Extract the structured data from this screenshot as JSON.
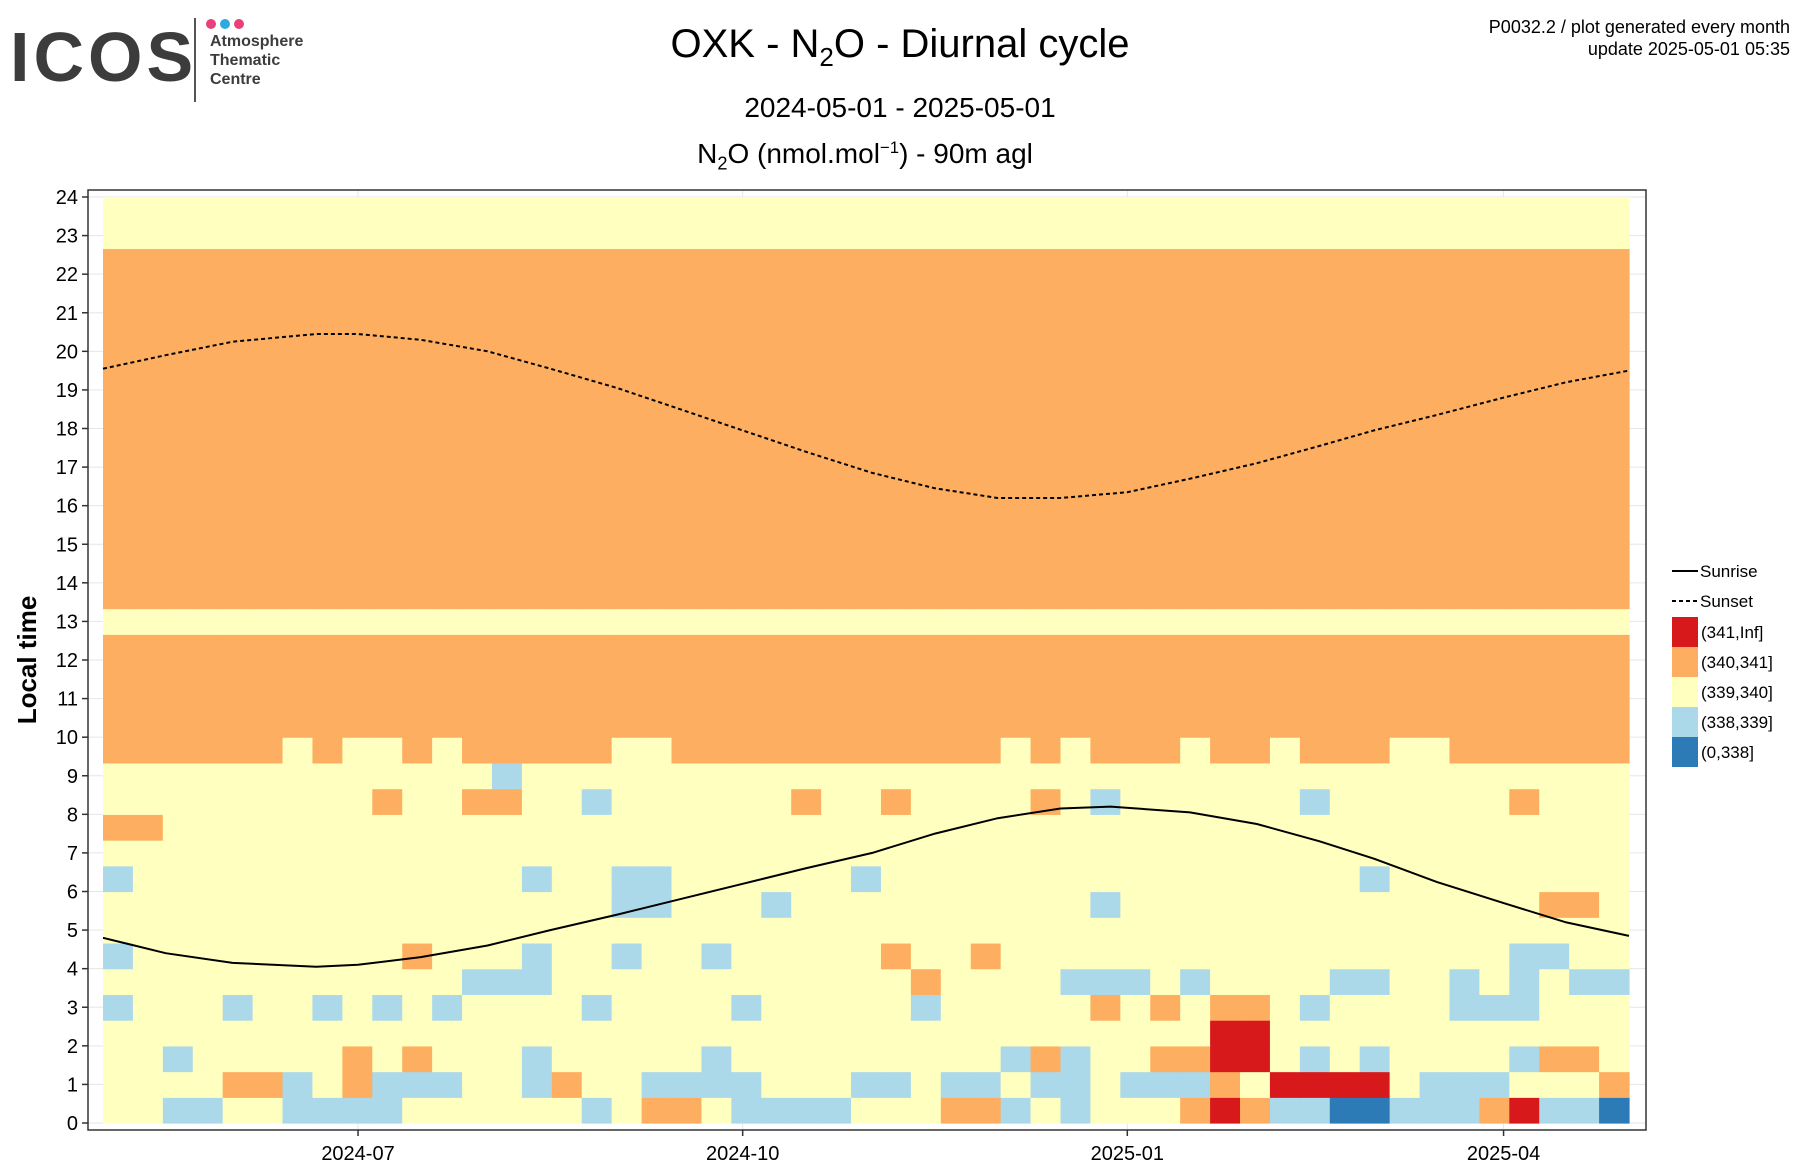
{
  "logo": {
    "word": "ICOS",
    "line1": "Atmosphere",
    "line2": "Thematic",
    "line3": "Centre",
    "dot_colors": [
      "#e8407a",
      "#2eaae1",
      "#e8407a"
    ]
  },
  "header": {
    "code_line": "P0032.2 / plot generated every month",
    "update_line": "update  2025-05-01 05:35",
    "title_pre": "OXK - N",
    "title_sub": "2",
    "title_post": "O - Diurnal cycle",
    "period": "2024-05-01 - 2025-05-01",
    "unit_pre": "N",
    "unit_sub": "2",
    "unit_mid": "O (nmol.mol",
    "unit_sup": "−1",
    "unit_post": ") - 90m agl"
  },
  "chart_data": {
    "type": "heatmap",
    "ylabel": "Local time",
    "x_start": "2024-05-01",
    "x_end": "2025-05-01",
    "x_ticks": [
      "2024-07-01",
      "2024-10-01",
      "2025-01-01",
      "2025-04-01"
    ],
    "x_tick_labels": [
      "2024-07",
      "2024-10",
      "2025-01",
      "2025-04"
    ],
    "y_range": [
      0,
      24
    ],
    "y_ticks": [
      0,
      1,
      2,
      3,
      4,
      5,
      6,
      7,
      8,
      9,
      10,
      11,
      12,
      13,
      14,
      15,
      16,
      17,
      18,
      19,
      20,
      21,
      22,
      23,
      24
    ],
    "bins": [
      {
        "label": "(341,Inf]",
        "color": "#d7191c"
      },
      {
        "label": "(340,341]",
        "color": "#fdae61"
      },
      {
        "label": "(339,340]",
        "color": "#ffffbf"
      },
      {
        "label": "(338,339]",
        "color": "#abd9e9"
      },
      {
        "label": "(0,338]",
        "color": "#2c7bb6"
      }
    ],
    "series": [
      {
        "name": "Sunrise",
        "style": "solid",
        "points": [
          [
            "2024-05-01",
            4.8
          ],
          [
            "2024-05-16",
            4.4
          ],
          [
            "2024-06-01",
            4.15
          ],
          [
            "2024-06-21",
            4.05
          ],
          [
            "2024-07-01",
            4.1
          ],
          [
            "2024-07-16",
            4.3
          ],
          [
            "2024-08-01",
            4.6
          ],
          [
            "2024-08-16",
            5.0
          ],
          [
            "2024-09-01",
            5.4
          ],
          [
            "2024-09-16",
            5.8
          ],
          [
            "2024-10-01",
            6.2
          ],
          [
            "2024-10-16",
            6.6
          ],
          [
            "2024-11-01",
            7.0
          ],
          [
            "2024-11-16",
            7.5
          ],
          [
            "2024-12-01",
            7.9
          ],
          [
            "2024-12-16",
            8.15
          ],
          [
            "2024-12-28",
            8.2
          ],
          [
            "2025-01-16",
            8.05
          ],
          [
            "2025-02-01",
            7.75
          ],
          [
            "2025-02-16",
            7.3
          ],
          [
            "2025-03-01",
            6.85
          ],
          [
            "2025-03-16",
            6.25
          ],
          [
            "2025-04-01",
            5.7
          ],
          [
            "2025-04-16",
            5.2
          ],
          [
            "2025-05-01",
            4.85
          ]
        ]
      },
      {
        "name": "Sunset",
        "style": "dashed",
        "points": [
          [
            "2024-05-01",
            19.55
          ],
          [
            "2024-05-16",
            19.9
          ],
          [
            "2024-06-01",
            20.25
          ],
          [
            "2024-06-21",
            20.45
          ],
          [
            "2024-07-01",
            20.45
          ],
          [
            "2024-07-16",
            20.3
          ],
          [
            "2024-08-01",
            20.0
          ],
          [
            "2024-08-16",
            19.55
          ],
          [
            "2024-09-01",
            19.05
          ],
          [
            "2024-09-16",
            18.5
          ],
          [
            "2024-10-01",
            17.95
          ],
          [
            "2024-10-16",
            17.4
          ],
          [
            "2024-11-01",
            16.85
          ],
          [
            "2024-11-16",
            16.45
          ],
          [
            "2024-12-01",
            16.2
          ],
          [
            "2024-12-16",
            16.2
          ],
          [
            "2025-01-01",
            16.35
          ],
          [
            "2025-01-16",
            16.7
          ],
          [
            "2025-02-01",
            17.1
          ],
          [
            "2025-02-16",
            17.55
          ],
          [
            "2025-03-01",
            17.95
          ],
          [
            "2025-03-16",
            18.35
          ],
          [
            "2025-04-01",
            18.8
          ],
          [
            "2025-04-16",
            19.2
          ],
          [
            "2025-05-01",
            19.5
          ]
        ]
      }
    ],
    "grid": true,
    "legend_position": "right",
    "daily_bins": [
      "223322333322222232112333322211323222101334433310334",
      "222211321333223122333322233233233233312000023332221",
      "223222221212223222223222222222313221100232322223112",
      "222222222222222222222222222222222222200222222222222",
      "322232232323222232222322222322222121211232222333222",
      "222222222222333222222222222122223332322223322323233",
      "322222222212223223223222221221222222222222222223322",
      "222222222222222222222222222222222222222222222222222",
      "222222222222222223322232222222222322222222222222112",
      "322222222222223223322222232222222222222222322222222",
      "222222222222222222222222222222222222222222222222222",
      "112222222222222222222222222222222222222222222222222",
      "222222222122112232222221221222212322222232222221222",
      "222222222222232222222222222222222222222222222222222",
      "111111212212111112211111111111212111211211122111111",
      "111111111111111111111111111111111111111111111111111",
      "111111111111111111111111111111111111111111111111111",
      "111111111111111111111111111111111111111111111111111",
      "111111111111111111111111111111111111111111111111111",
      "222222222222222222222222222222222222222222222222222",
      "111111111111111111111111111111111111111111111111111",
      "111111111111111111111111111111111111111111111111111",
      "111111111111111111111111111111111111111111111111111",
      "111111111111111111111111111111111111111111111111111",
      "111111111111111111111111111111111111111111111111111",
      "111111111111111111111111111111111111111111111111111",
      "111111111111111111111111111111111111111111111111111",
      "111111111111111111111111111111111111111111111111111",
      "111111111111111111111111111111111111111111111111111",
      "111111111111111111111111111111111111111111111111111",
      "111111111111111111111111111111111111111111111111111",
      "111111111111111111111111111111111111111111111111111",
      "111111111111111111111111111111111111111111111111111",
      "111111111111111111111111111111111111111111111111111",
      "222222222222222222222222222222222222222222222222222",
      "222222222222222222222222222222222222222222222222222"
    ]
  }
}
